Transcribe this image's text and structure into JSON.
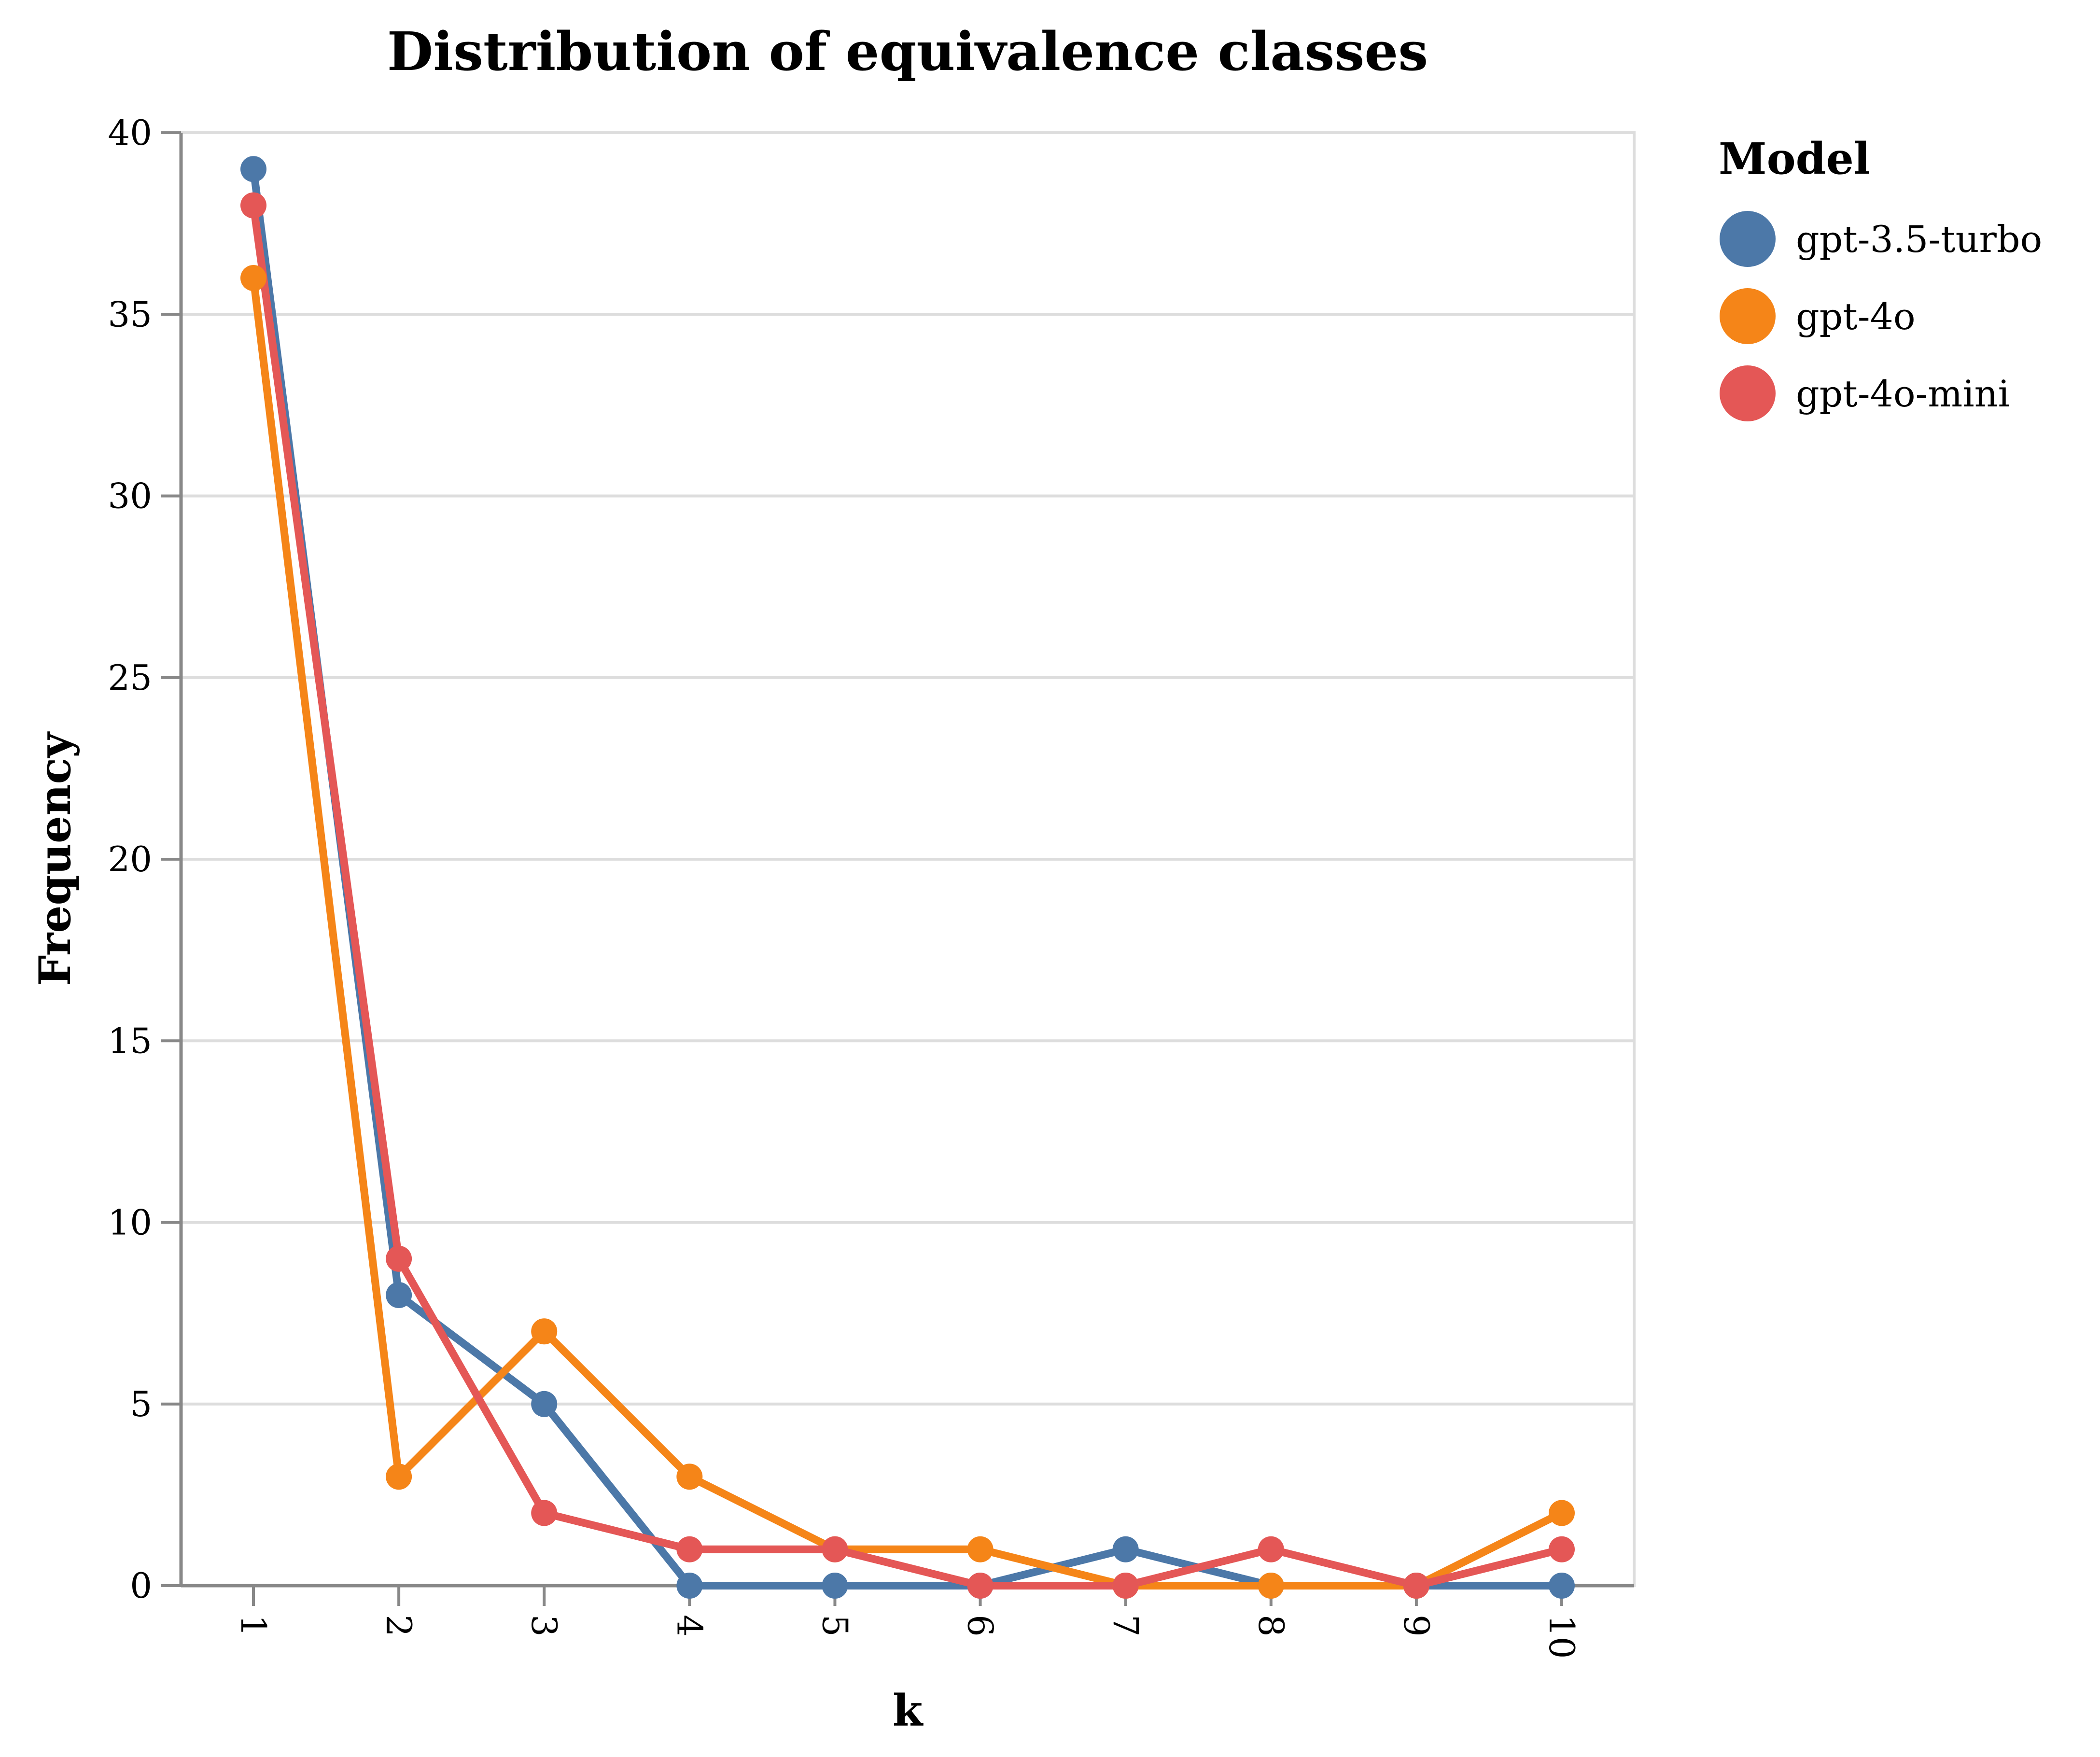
{
  "chart_data": {
    "type": "line",
    "title": "Distribution of equivalence classes",
    "xlabel": "k",
    "ylabel": "Frequency",
    "x": [
      1,
      2,
      3,
      4,
      5,
      6,
      7,
      8,
      9,
      10
    ],
    "x_tick_labels": [
      "1",
      "2",
      "3",
      "4",
      "5",
      "6",
      "7",
      "8",
      "9",
      "10"
    ],
    "y_ticks": [
      0,
      5,
      10,
      15,
      20,
      25,
      30,
      35,
      40
    ],
    "y_tick_labels": [
      "0",
      "5",
      "10",
      "15",
      "20",
      "25",
      "30",
      "35",
      "40"
    ],
    "ylim": [
      0,
      40
    ],
    "grid": "horizontal",
    "legend": {
      "title": "Model",
      "placement": "right"
    },
    "series": [
      {
        "name": "gpt-3.5-turbo",
        "color": "#4c78a8",
        "values": [
          39,
          8,
          5,
          0,
          0,
          0,
          1,
          0,
          0,
          0
        ]
      },
      {
        "name": "gpt-4o",
        "color": "#f58518",
        "values": [
          36,
          3,
          7,
          3,
          1,
          1,
          0,
          0,
          0,
          2
        ]
      },
      {
        "name": "gpt-4o-mini",
        "color": "#e45756",
        "values": [
          38,
          9,
          2,
          1,
          1,
          0,
          0,
          1,
          0,
          1
        ]
      }
    ]
  }
}
